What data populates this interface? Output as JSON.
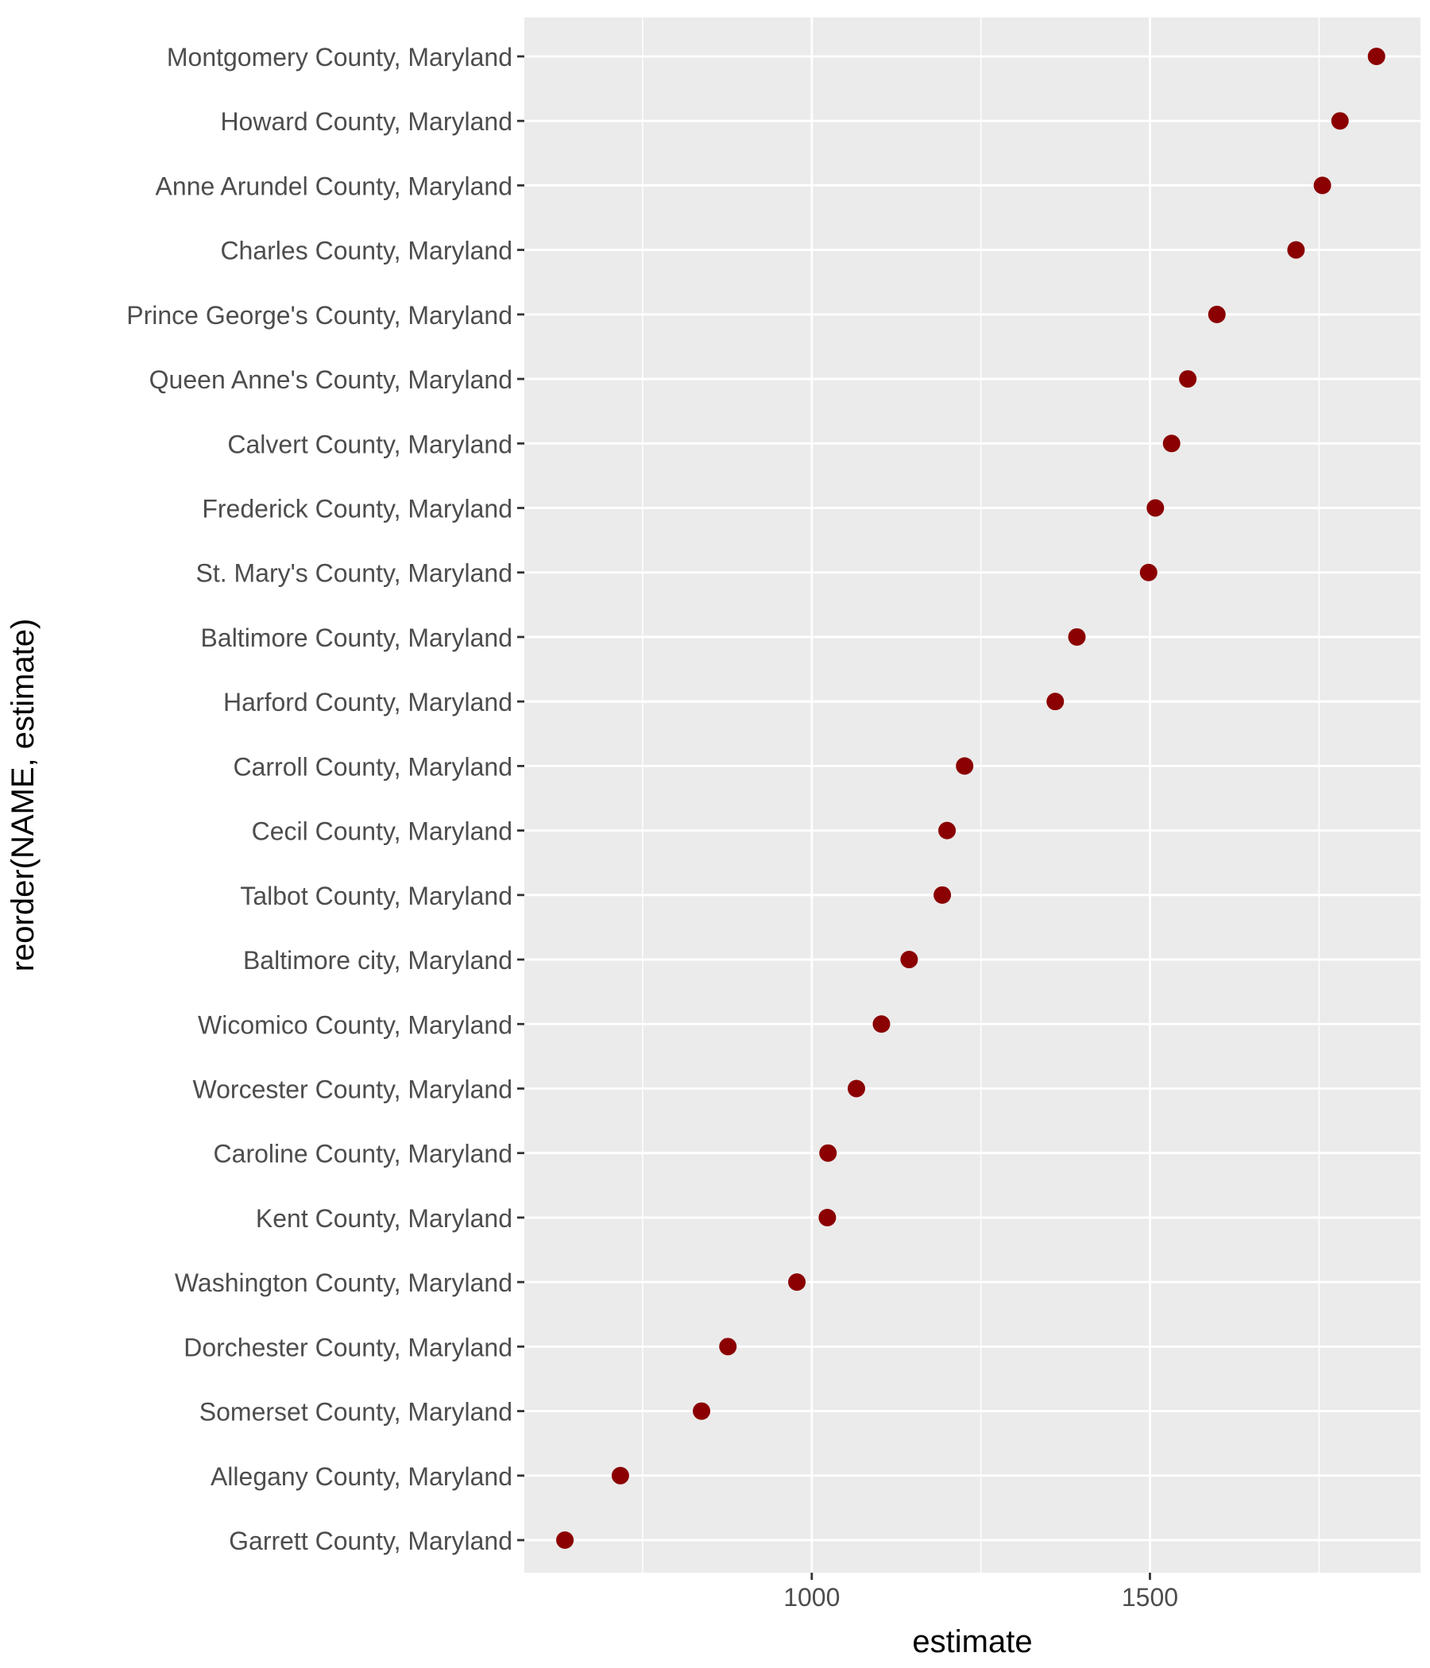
{
  "chart_data": {
    "type": "scatter",
    "title": "",
    "xlabel": "estimate",
    "ylabel": "reorder(NAME, estimate)",
    "xlim": [
      575,
      1900
    ],
    "x_ticks": [
      1000,
      1500
    ],
    "x_minor_ticks": [
      750,
      1250,
      1750
    ],
    "grid": true,
    "point_color": "#8B0000",
    "panel_color": "#EBEBEB",
    "grid_color": "#FFFFFF",
    "categories": [
      "Montgomery County, Maryland",
      "Howard County, Maryland",
      "Anne Arundel County, Maryland",
      "Charles County, Maryland",
      "Prince George's County, Maryland",
      "Queen Anne's County, Maryland",
      "Calvert County, Maryland",
      "Frederick County, Maryland",
      "St. Mary's County, Maryland",
      "Baltimore County, Maryland",
      "Harford County, Maryland",
      "Carroll County, Maryland",
      "Cecil County, Maryland",
      "Talbot County, Maryland",
      "Baltimore city, Maryland",
      "Wicomico County, Maryland",
      "Worcester County, Maryland",
      "Caroline County, Maryland",
      "Kent County, Maryland",
      "Washington County, Maryland",
      "Dorchester County, Maryland",
      "Somerset County, Maryland",
      "Allegany County, Maryland",
      "Garrett County, Maryland"
    ],
    "values": [
      1835,
      1781,
      1755,
      1716,
      1599,
      1556,
      1532,
      1508,
      1498,
      1392,
      1360,
      1226,
      1200,
      1193,
      1144,
      1103,
      1066,
      1024,
      1023,
      978,
      876,
      837,
      717,
      635
    ]
  }
}
